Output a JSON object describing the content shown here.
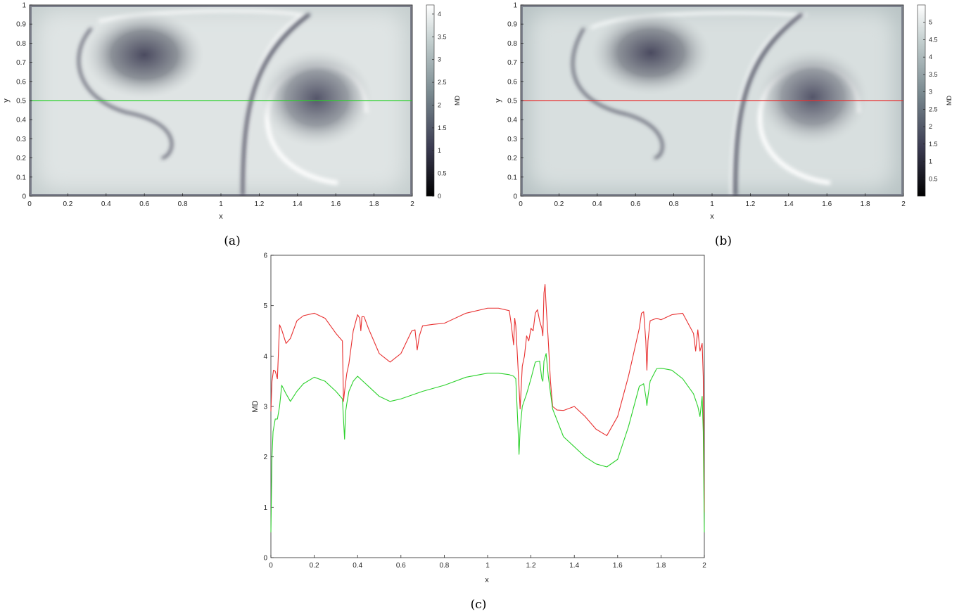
{
  "colors": {
    "line_green": "#2bd12b",
    "line_red": "#e83030",
    "map_dark": "#4a4a5e",
    "map_light": "#eef1f1",
    "axis": "#262626"
  },
  "chart_data": [
    {
      "id": "a",
      "type": "heatmap",
      "caption": "(a)",
      "xlabel": "x",
      "ylabel": "y",
      "colorbar_label": "MD",
      "xlim": [
        0,
        2
      ],
      "ylim": [
        0,
        1
      ],
      "x_ticks": [
        "0",
        "0.2",
        "0.4",
        "0.6",
        "0.8",
        "1",
        "1.2",
        "1.4",
        "1.6",
        "1.8",
        "2"
      ],
      "y_ticks": [
        "0",
        "0.1",
        "0.2",
        "0.3",
        "0.4",
        "0.5",
        "0.6",
        "0.7",
        "0.8",
        "0.9",
        "1"
      ],
      "colorbar_range": [
        0,
        4.2
      ],
      "colorbar_ticks": [
        "0",
        "0.5",
        "1",
        "1.5",
        "2",
        "2.5",
        "3",
        "3.5",
        "4"
      ],
      "colorbar_tick_values": [
        0,
        0.5,
        1,
        1.5,
        2,
        2.5,
        3,
        3.5,
        4
      ],
      "section_line_y": 0.5,
      "vortex_centers": [
        [
          0.6,
          0.71
        ],
        [
          1.5,
          0.44
        ]
      ]
    },
    {
      "id": "b",
      "type": "heatmap",
      "caption": "(b)",
      "xlabel": "x",
      "ylabel": "y",
      "colorbar_label": "MD",
      "xlim": [
        0,
        2
      ],
      "ylim": [
        0,
        1
      ],
      "x_ticks": [
        "0",
        "0.2",
        "0.4",
        "0.6",
        "0.8",
        "1",
        "1.2",
        "1.4",
        "1.6",
        "1.8",
        "2"
      ],
      "y_ticks": [
        "0",
        "0.1",
        "0.2",
        "0.3",
        "0.4",
        "0.5",
        "0.6",
        "0.7",
        "0.8",
        "0.9",
        "1"
      ],
      "colorbar_range": [
        0,
        5.5
      ],
      "colorbar_ticks": [
        "0.5",
        "1",
        "1.5",
        "2",
        "2.5",
        "3",
        "3.5",
        "4",
        "4.5",
        "5"
      ],
      "colorbar_tick_values": [
        0.5,
        1,
        1.5,
        2,
        2.5,
        3,
        3.5,
        4,
        4.5,
        5
      ],
      "section_line_y": 0.5,
      "vortex_centers": [
        [
          0.68,
          0.72
        ],
        [
          1.52,
          0.47
        ]
      ]
    },
    {
      "id": "c",
      "type": "line",
      "caption": "(c)",
      "xlabel": "x",
      "ylabel": "MD",
      "xlim": [
        0,
        2
      ],
      "ylim": [
        0,
        6
      ],
      "x_ticks": [
        "0",
        "0.2",
        "0.4",
        "0.6",
        "0.8",
        "1",
        "1.2",
        "1.4",
        "1.6",
        "1.8",
        "2"
      ],
      "y_ticks": [
        "0",
        "1",
        "2",
        "3",
        "4",
        "5",
        "6"
      ],
      "grid": false,
      "series": [
        {
          "color": "#e83030",
          "x": [
            0.0,
            0.005,
            0.012,
            0.02,
            0.03,
            0.04,
            0.05,
            0.07,
            0.09,
            0.12,
            0.15,
            0.2,
            0.25,
            0.3,
            0.33,
            0.335,
            0.34,
            0.35,
            0.36,
            0.38,
            0.4,
            0.41,
            0.415,
            0.42,
            0.43,
            0.45,
            0.5,
            0.55,
            0.6,
            0.65,
            0.665,
            0.675,
            0.685,
            0.7,
            0.75,
            0.8,
            0.9,
            1.0,
            1.05,
            1.1,
            1.11,
            1.12,
            1.125,
            1.13,
            1.14,
            1.15,
            1.16,
            1.17,
            1.18,
            1.19,
            1.2,
            1.21,
            1.22,
            1.23,
            1.24,
            1.25,
            1.255,
            1.26,
            1.265,
            1.27,
            1.28,
            1.29,
            1.3,
            1.32,
            1.35,
            1.4,
            1.45,
            1.5,
            1.55,
            1.6,
            1.65,
            1.7,
            1.71,
            1.72,
            1.73,
            1.735,
            1.74,
            1.75,
            1.78,
            1.8,
            1.85,
            1.9,
            1.95,
            1.96,
            1.97,
            1.98,
            1.99,
            1.995,
            2.0
          ],
          "y": [
            2.9,
            3.5,
            3.72,
            3.7,
            3.55,
            4.62,
            4.52,
            4.25,
            4.35,
            4.7,
            4.8,
            4.85,
            4.75,
            4.45,
            4.3,
            3.1,
            3.3,
            3.65,
            3.85,
            4.5,
            4.82,
            4.75,
            4.5,
            4.78,
            4.78,
            4.55,
            4.05,
            3.88,
            4.05,
            4.5,
            4.52,
            4.12,
            4.4,
            4.6,
            4.63,
            4.65,
            4.85,
            4.95,
            4.95,
            4.9,
            4.6,
            4.22,
            4.75,
            4.6,
            3.8,
            2.95,
            3.8,
            4.0,
            4.4,
            4.3,
            4.55,
            4.5,
            4.85,
            4.92,
            4.7,
            4.55,
            4.4,
            5.25,
            5.42,
            5.0,
            4.3,
            3.5,
            3.0,
            2.93,
            2.92,
            3.0,
            2.8,
            2.55,
            2.42,
            2.8,
            3.6,
            4.55,
            4.85,
            4.88,
            4.3,
            3.72,
            4.3,
            4.7,
            4.75,
            4.72,
            4.82,
            4.85,
            4.45,
            4.1,
            4.52,
            4.1,
            4.25,
            3.6,
            0.9
          ]
        },
        {
          "color": "#2bd12b",
          "x": [
            0.0,
            0.005,
            0.01,
            0.02,
            0.03,
            0.04,
            0.05,
            0.07,
            0.09,
            0.12,
            0.15,
            0.2,
            0.25,
            0.3,
            0.33,
            0.34,
            0.345,
            0.35,
            0.36,
            0.38,
            0.4,
            0.42,
            0.45,
            0.5,
            0.55,
            0.6,
            0.7,
            0.8,
            0.9,
            1.0,
            1.05,
            1.1,
            1.12,
            1.13,
            1.14,
            1.145,
            1.15,
            1.16,
            1.18,
            1.2,
            1.22,
            1.24,
            1.25,
            1.255,
            1.26,
            1.27,
            1.28,
            1.3,
            1.35,
            1.4,
            1.45,
            1.5,
            1.55,
            1.6,
            1.65,
            1.7,
            1.72,
            1.73,
            1.735,
            1.74,
            1.75,
            1.78,
            1.8,
            1.85,
            1.9,
            1.95,
            1.97,
            1.98,
            1.99,
            1.995,
            2.0
          ],
          "y": [
            0.5,
            2.0,
            2.5,
            2.75,
            2.75,
            3.0,
            3.42,
            3.25,
            3.1,
            3.3,
            3.45,
            3.58,
            3.5,
            3.3,
            3.15,
            2.35,
            2.9,
            3.05,
            3.3,
            3.5,
            3.6,
            3.52,
            3.4,
            3.2,
            3.1,
            3.15,
            3.3,
            3.42,
            3.58,
            3.66,
            3.66,
            3.63,
            3.6,
            3.55,
            2.6,
            2.05,
            2.55,
            3.0,
            3.25,
            3.55,
            3.88,
            3.9,
            3.55,
            3.5,
            3.9,
            4.05,
            3.6,
            2.95,
            2.4,
            2.2,
            2.0,
            1.86,
            1.8,
            1.95,
            2.6,
            3.4,
            3.45,
            3.2,
            3.02,
            3.2,
            3.5,
            3.75,
            3.76,
            3.72,
            3.55,
            3.25,
            3.0,
            2.8,
            3.2,
            2.5,
            0.5
          ]
        }
      ]
    }
  ]
}
